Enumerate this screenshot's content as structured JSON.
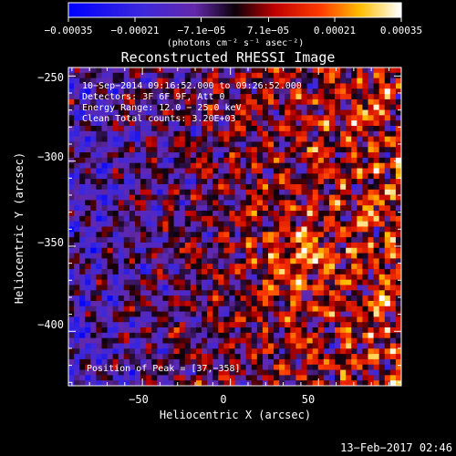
{
  "chart_data": {
    "type": "heatmap",
    "title": "Reconstructed RHESSI Image",
    "xlabel": "Heliocentric X (arcsec)",
    "ylabel": "Heliocentric Y (arcsec)",
    "xlim": [
      -92,
      97
    ],
    "ylim": [
      -432,
      -245
    ],
    "x_ticks": [
      -50,
      0,
      50
    ],
    "x_tick_labels": [
      "−50",
      "0",
      "50"
    ],
    "y_ticks": [
      -250,
      -300,
      -350,
      -400
    ],
    "y_tick_labels": [
      "−250",
      "−300",
      "−350",
      "−400"
    ],
    "colorbar": {
      "range": [
        -0.00035,
        0.00035
      ],
      "tick_values": [
        -0.00035,
        -0.00021,
        -7.1e-05,
        7.1e-05,
        0.00021,
        0.00035
      ],
      "tick_labels": [
        "−0.00035",
        "−0.00021",
        "−7.1e−05",
        "7.1e−05",
        "0.00021",
        "0.00035"
      ],
      "units": "(photons cm⁻² s⁻¹ asec⁻²)"
    },
    "annotations": [
      "10−Sep−2014 09:16:52.000 to 09:26:52.000",
      "Detectors: 3F 6F 9F, Att 0",
      "Energy Range: 12.0 − 25.0 keV",
      "Clean    Total counts: 3.20E+03",
      "Position of Peak = [37,−358]"
    ],
    "peak": {
      "x": 37,
      "y": -358
    },
    "colors": {
      "background": "#000000",
      "text": "#ffffff"
    }
  },
  "footer": {
    "timestamp": "13−Feb−2017 02:46"
  }
}
